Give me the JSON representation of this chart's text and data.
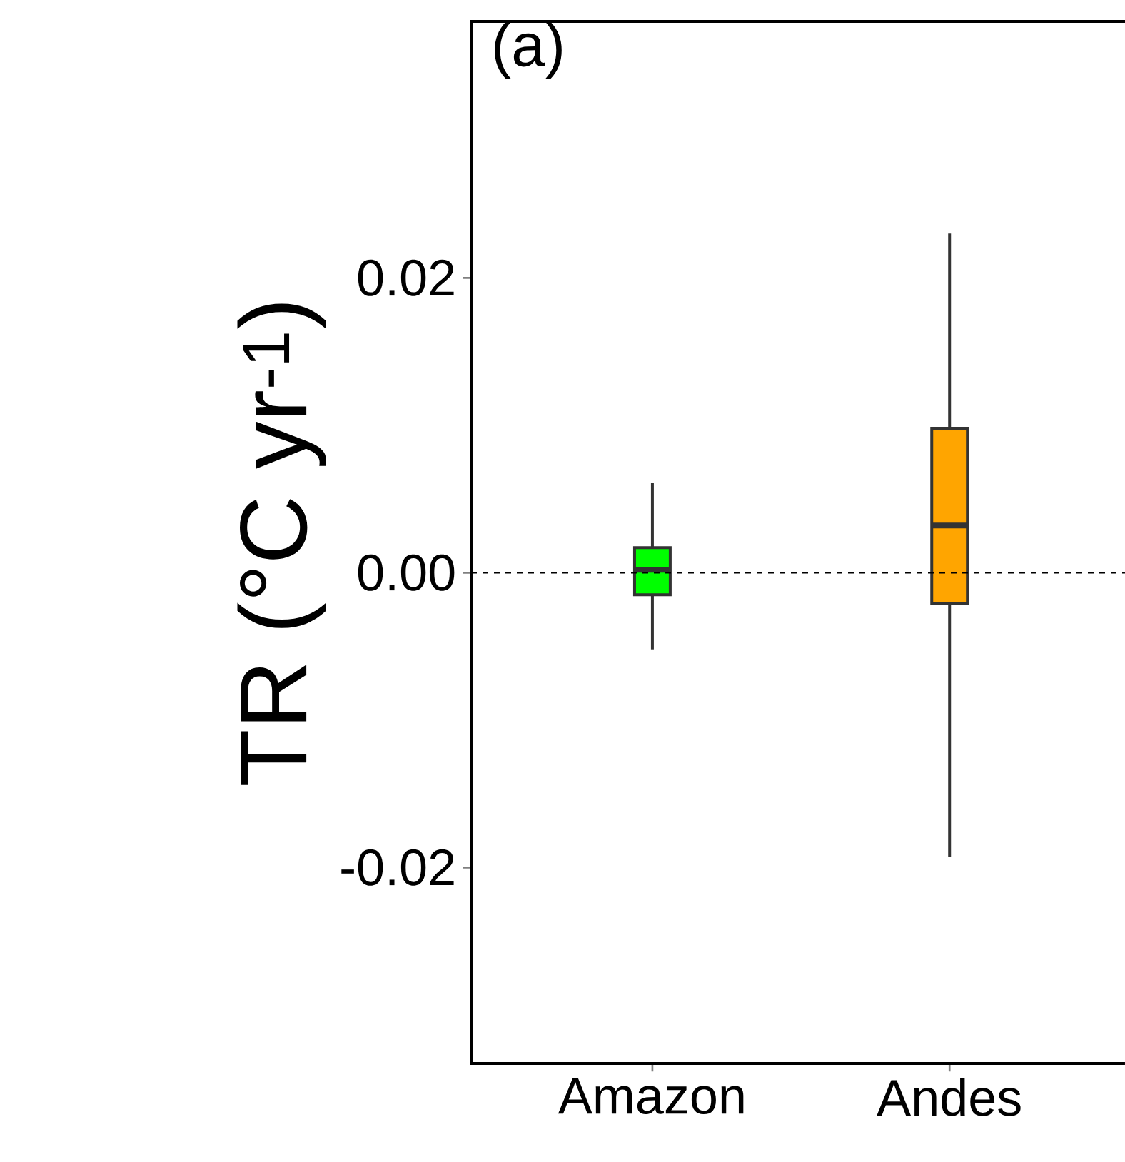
{
  "chart_data": {
    "type": "box",
    "title": "(a)",
    "ylabel": "TR (°C yr$^{-1}$)",
    "categories": [
      "Amazon",
      "Andes"
    ],
    "colors": [
      "#00ff00",
      "#ffa500"
    ],
    "boxes": [
      {
        "low": -0.0052,
        "q1": -0.0015,
        "median": 0.0002,
        "q3": 0.0017,
        "high": 0.0061
      },
      {
        "low": -0.0193,
        "q1": -0.0021,
        "median": 0.0032,
        "q3": 0.0098,
        "high": 0.023
      }
    ],
    "ylim": [
      -0.0333,
      0.0374
    ],
    "yticks": [
      {
        "value": -0.02,
        "label": "-0.02"
      },
      {
        "value": 0,
        "label": "0.00"
      },
      {
        "value": 0.02,
        "label": "0.02"
      }
    ],
    "ref_lines": [
      {
        "axis": "y",
        "value": 0,
        "line_style": "dashed"
      }
    ],
    "grid": false
  }
}
